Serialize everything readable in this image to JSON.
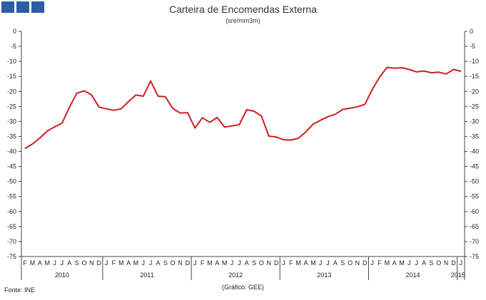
{
  "header": {
    "title": "Carteira de Encomendas Externa",
    "subtitle": "(sre/mm3m)"
  },
  "footer": {
    "source": "Fonte:  INE",
    "credit": "(Gráfico:  GEE)"
  },
  "logo": {
    "icon": "ine-logo-blocks",
    "color": "#2a5ea6"
  },
  "chart_data": {
    "type": "line",
    "title": "Carteira de Encomendas Externa",
    "subtitle": "(sre/mm3m)",
    "ylim": [
      -75,
      0
    ],
    "y_ticks": [
      0,
      -5,
      -10,
      -15,
      -20,
      -25,
      -30,
      -35,
      -40,
      -45,
      -50,
      -55,
      -60,
      -65,
      -70,
      -75
    ],
    "grid": false,
    "line_color": "#cc1f1f",
    "month_labels": [
      "F",
      "M",
      "A",
      "M",
      "J",
      "J",
      "A",
      "S",
      "O",
      "N",
      "D",
      "J",
      "F",
      "M",
      "A",
      "M",
      "J",
      "J",
      "A",
      "S",
      "O",
      "N",
      "D",
      "J",
      "F",
      "M",
      "A",
      "M",
      "J",
      "J",
      "A",
      "S",
      "O",
      "N",
      "D",
      "J",
      "F",
      "M",
      "A",
      "M",
      "J",
      "J",
      "A",
      "S",
      "O",
      "N",
      "D",
      "J",
      "F",
      "M",
      "A",
      "M",
      "J",
      "J",
      "A",
      "S",
      "O",
      "N",
      "D",
      "J"
    ],
    "years": [
      {
        "label": "2010",
        "start": 0,
        "end": 10
      },
      {
        "label": "2011",
        "start": 11,
        "end": 22
      },
      {
        "label": "2012",
        "start": 23,
        "end": 34
      },
      {
        "label": "2013",
        "start": 35,
        "end": 46
      },
      {
        "label": "2014",
        "start": 47,
        "end": 58
      },
      {
        "label": "2015",
        "start": 59,
        "end": 59
      }
    ],
    "series": [
      {
        "values": [
          -39.0,
          -37.5,
          -35.5,
          -33.2,
          -31.8,
          -30.6,
          -25.3,
          -20.6,
          -19.8,
          -21.2,
          -25.2,
          -25.8,
          -26.3,
          -25.8,
          -23.4,
          -21.2,
          -21.6,
          -16.5,
          -21.6,
          -21.8,
          -25.7,
          -27.2,
          -27.1,
          -32.2,
          -28.8,
          -30.3,
          -28.7,
          -31.9,
          -31.5,
          -31.1,
          -26.1,
          -26.6,
          -28.2,
          -34.9,
          -35.2,
          -36.1,
          -36.2,
          -35.6,
          -33.5,
          -30.9,
          -29.6,
          -28.4,
          -27.6,
          -26.0,
          -25.6,
          -25.1,
          -24.3,
          -19.4,
          -15.2,
          -12.0,
          -12.3,
          -12.1,
          -12.7,
          -13.5,
          -13.2,
          -13.8,
          -13.6,
          -14.2,
          -12.7,
          -13.3
        ]
      }
    ]
  }
}
